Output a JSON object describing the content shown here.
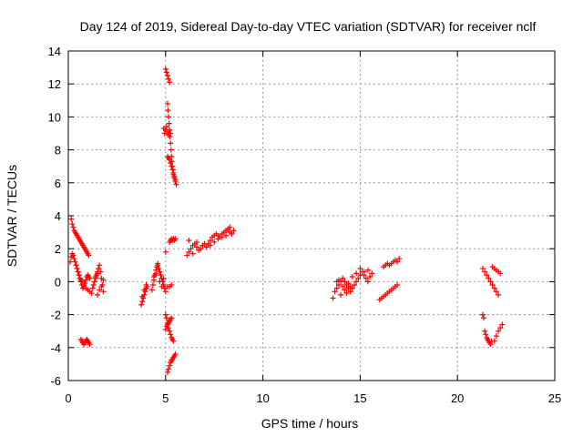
{
  "chart_data": {
    "type": "scatter",
    "title": "Day 124 of 2019, Sidereal Day-to-day VTEC variation (SDTVAR) for receiver nclf",
    "xlabel": "GPS time / hours",
    "ylabel": "SDTVAR / TECUs",
    "xlim": [
      0,
      25
    ],
    "ylim": [
      -6,
      14
    ],
    "xticks": [
      0,
      5,
      10,
      15,
      20,
      25
    ],
    "yticks": [
      -6,
      -4,
      -2,
      0,
      2,
      4,
      6,
      8,
      10,
      12,
      14
    ],
    "grid": true,
    "marker": "+",
    "color": "#ff0000",
    "series": [
      {
        "name": "SDTVAR",
        "x": [
          0.15,
          0.2,
          0.25,
          0.3,
          0.35,
          0.4,
          0.45,
          0.5,
          0.55,
          0.6,
          0.65,
          0.7,
          0.75,
          0.8,
          0.85,
          0.9,
          0.95,
          1.0,
          1.05,
          0.1,
          0.15,
          0.2,
          0.25,
          0.3,
          0.35,
          0.4,
          0.45,
          0.5,
          0.55,
          0.6,
          0.65,
          0.7,
          0.8,
          0.9,
          1.0,
          1.1,
          1.2,
          0.4,
          0.45,
          0.5,
          0.55,
          0.6,
          0.65,
          0.7,
          0.75,
          0.8,
          0.85,
          0.9,
          0.95,
          1.0,
          1.05,
          1.1,
          1.25,
          1.3,
          1.35,
          1.4,
          1.45,
          1.5,
          1.55,
          1.6,
          1.65,
          1.7,
          1.75,
          1.8,
          1.5,
          1.6,
          1.7,
          1.8,
          1.4,
          1.5,
          0.65,
          0.7,
          0.75,
          0.8,
          0.85,
          0.9,
          0.95,
          1.0,
          1.05,
          1.1,
          3.75,
          3.8,
          3.85,
          3.9,
          3.95,
          4.0,
          4.05,
          3.8,
          3.9,
          4.0,
          4.3,
          4.35,
          4.4,
          4.45,
          4.5,
          4.55,
          4.6,
          4.65,
          4.7,
          4.75,
          4.8,
          4.85,
          4.9,
          4.95,
          5.0,
          4.4,
          4.5,
          4.6,
          4.7,
          4.8,
          4.9,
          4.9,
          4.95,
          5.0,
          5.05,
          5.1,
          5.15,
          5.2,
          5.25,
          5.0,
          5.05,
          5.1,
          5.15,
          5.2,
          5.25,
          5.3,
          5.35,
          5.4,
          5.1,
          5.15,
          5.2,
          5.25,
          5.3,
          5.35,
          5.4,
          5.45,
          5.5,
          5.1,
          5.12,
          5.15,
          5.18,
          5.2,
          5.22,
          5.25,
          5.28,
          5.3,
          5.32,
          5.35,
          5.38,
          5.4,
          5.45,
          5.5,
          5.55,
          5.0,
          5.05,
          5.1,
          5.15,
          5.2,
          5.0,
          5.05,
          5.1,
          5.15,
          5.2,
          5.25,
          5.3,
          5.1,
          5.15,
          5.2,
          5.25,
          5.3,
          5.35,
          5.4,
          5.45,
          5.5,
          5.2,
          5.25,
          5.3,
          5.35,
          5.4,
          5.45,
          5.5,
          5.0,
          5.1,
          5.2,
          5.3,
          6.1,
          6.2,
          6.3,
          6.4,
          6.5,
          6.6,
          6.7,
          6.8,
          6.9,
          7.0,
          6.2,
          6.4,
          6.6,
          7.1,
          7.2,
          7.3,
          7.4,
          7.5,
          7.6,
          7.7,
          7.8,
          7.9,
          8.0,
          8.1,
          8.2,
          8.3,
          8.4,
          8.5,
          7.3,
          7.5,
          7.7,
          7.9,
          8.1,
          8.3,
          13.6,
          13.7,
          13.8,
          13.9,
          14.0,
          14.1,
          14.2,
          14.3,
          14.4,
          14.5,
          14.6,
          14.7,
          14.8,
          14.9,
          15.0,
          15.1,
          15.2,
          15.3,
          15.4,
          15.5,
          15.6,
          13.8,
          14.0,
          14.2,
          14.4,
          14.6,
          14.8,
          15.0,
          15.2,
          15.4,
          13.9,
          14.1,
          14.3,
          14.5,
          16.0,
          16.1,
          16.2,
          16.3,
          16.4,
          16.5,
          16.6,
          16.7,
          16.8,
          16.9,
          16.2,
          16.3,
          16.4,
          16.5,
          16.6,
          16.7,
          16.8,
          16.9,
          17.0,
          21.3,
          21.4,
          21.5,
          21.6,
          21.7,
          21.8,
          21.9,
          22.0,
          22.1,
          21.8,
          21.9,
          22.0,
          22.1,
          22.2,
          21.3,
          21.35,
          21.4,
          21.45,
          21.5,
          21.55,
          21.6,
          21.65,
          21.7,
          21.75,
          21.9,
          22.0,
          22.1,
          22.2,
          22.3
        ],
        "y": [
          3.8,
          3.5,
          3.3,
          3.1,
          3.0,
          2.9,
          2.8,
          2.7,
          2.6,
          2.5,
          2.4,
          2.3,
          2.2,
          2.1,
          2.0,
          1.9,
          1.8,
          1.7,
          1.6,
          1.2,
          1.5,
          1.7,
          1.6,
          1.4,
          1.2,
          1.0,
          0.8,
          0.6,
          0.4,
          0.2,
          0.1,
          0.0,
          -0.2,
          -0.4,
          -0.5,
          -0.6,
          -0.7,
          1.0,
          0.8,
          0.6,
          0.4,
          0.2,
          0.0,
          -0.2,
          -0.4,
          -0.3,
          -0.1,
          0.1,
          0.3,
          0.4,
          0.3,
          0.2,
          -0.4,
          -0.2,
          0.0,
          0.2,
          0.4,
          0.6,
          0.8,
          1.0,
          0.6,
          0.2,
          -0.2,
          -0.6,
          -0.8,
          -0.5,
          -0.3,
          0.1,
          0.3,
          0.5,
          -3.5,
          -3.6,
          -3.7,
          -3.8,
          -3.7,
          -3.6,
          -3.5,
          -3.6,
          -3.7,
          -3.8,
          -1.4,
          -1.2,
          -1.0,
          -0.8,
          -0.6,
          -0.4,
          -0.3,
          -0.9,
          -0.5,
          -0.2,
          -0.5,
          -0.2,
          0.1,
          0.4,
          0.7,
          0.9,
          1.0,
          0.8,
          0.6,
          0.4,
          0.2,
          0.0,
          -0.2,
          -0.4,
          -0.6,
          0.3,
          0.5,
          1.1,
          0.0,
          -0.3,
          0.2,
          9.3,
          9.0,
          9.2,
          9.4,
          9.1,
          8.9,
          9.2,
          9.0,
          -2.0,
          -2.2,
          -2.5,
          -2.8,
          -3.0,
          -3.2,
          -3.4,
          -3.5,
          -3.6,
          -5.5,
          -5.3,
          -5.1,
          -4.9,
          -4.8,
          -4.7,
          -4.6,
          -4.5,
          -4.4,
          10.8,
          10.4,
          10.0,
          9.6,
          9.2,
          8.8,
          8.4,
          8.0,
          7.6,
          7.3,
          7.0,
          6.8,
          6.5,
          6.3,
          6.1,
          5.9,
          12.9,
          12.7,
          12.5,
          12.3,
          12.1,
          -2.9,
          -2.7,
          -2.6,
          -2.5,
          -2.4,
          -2.3,
          -2.2,
          7.6,
          7.5,
          7.4,
          7.2,
          7.0,
          6.8,
          6.6,
          6.4,
          6.2,
          2.4,
          2.5,
          2.6,
          2.5,
          2.6,
          2.5,
          2.6,
          1.8,
          -0.3,
          -0.3,
          -0.2,
          1.6,
          1.8,
          2.0,
          2.2,
          2.3,
          2.1,
          1.9,
          2.0,
          2.2,
          2.3,
          2.5,
          1.7,
          2.4,
          2.1,
          2.3,
          2.5,
          2.7,
          2.8,
          2.9,
          2.8,
          2.7,
          2.9,
          3.0,
          3.1,
          3.2,
          3.0,
          2.9,
          3.1,
          2.2,
          2.4,
          2.6,
          2.7,
          2.8,
          3.3,
          -1.0,
          -0.6,
          -0.4,
          -0.2,
          0.0,
          0.2,
          0.0,
          -0.2,
          -0.4,
          -0.6,
          -0.4,
          -0.2,
          0.0,
          0.2,
          0.4,
          0.6,
          0.4,
          0.2,
          0.0,
          0.3,
          0.5,
          0.0,
          -0.8,
          -0.5,
          -0.1,
          0.3,
          0.5,
          0.8,
          0.6,
          0.7,
          0.1,
          -0.3,
          -0.7,
          -0.3,
          -1.1,
          -1.0,
          -0.9,
          -0.8,
          -0.7,
          -0.6,
          -0.5,
          -0.4,
          -0.3,
          -0.2,
          0.9,
          1.0,
          1.1,
          1.0,
          1.1,
          1.2,
          1.3,
          1.2,
          1.4,
          0.8,
          0.6,
          0.4,
          0.2,
          0.0,
          -0.2,
          -0.4,
          -0.6,
          -0.8,
          0.9,
          0.8,
          0.7,
          0.6,
          0.5,
          -2.0,
          -2.2,
          -3.0,
          -3.2,
          -3.4,
          -3.5,
          -3.6,
          -3.7,
          -3.8,
          -3.6,
          -3.6,
          -3.3,
          -3.0,
          -2.8,
          -2.6
        ]
      }
    ]
  }
}
